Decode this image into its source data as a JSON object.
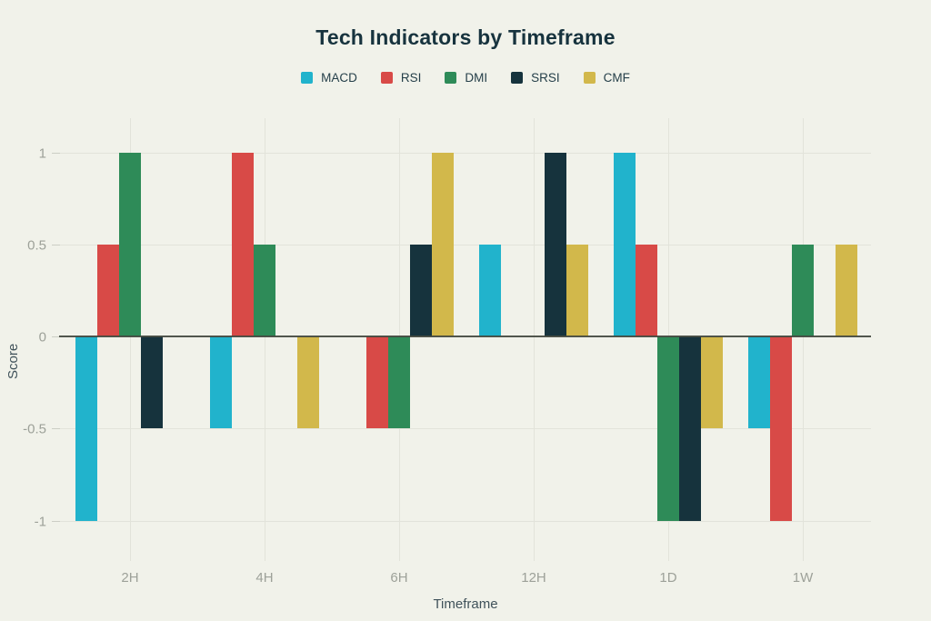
{
  "title": "Tech Indicators by Timeframe",
  "chart_data": {
    "type": "bar",
    "title": "Tech Indicators by Timeframe",
    "xlabel": "Timeframe",
    "ylabel": "Score",
    "categories": [
      "2H",
      "4H",
      "6H",
      "12H",
      "1D",
      "1W"
    ],
    "series": [
      {
        "name": "MACD",
        "color": "#21b3cc",
        "values": [
          -1,
          -0.5,
          0,
          0.5,
          1,
          -0.5
        ]
      },
      {
        "name": "RSI",
        "color": "#d84a47",
        "values": [
          0.5,
          1,
          -0.5,
          0,
          0.5,
          -1
        ]
      },
      {
        "name": "DMI",
        "color": "#2e8b58",
        "values": [
          1,
          0.5,
          -0.5,
          0,
          -1,
          0.5
        ]
      },
      {
        "name": "SRSI",
        "color": "#16333d",
        "values": [
          -0.5,
          0,
          0.5,
          1,
          -1,
          0
        ]
      },
      {
        "name": "CMF",
        "color": "#d2b84b",
        "values": [
          0,
          -0.5,
          1,
          0.5,
          -0.5,
          0.5
        ]
      }
    ],
    "yticks": [
      "1",
      "0.5",
      "0",
      "-0.5",
      "-1"
    ],
    "ylim": [
      -1.2,
      1.2
    ],
    "grid": true,
    "legend_position": "top",
    "colors": {
      "background": "#f1f2ea",
      "title_text": "#17333e",
      "tick_text": "#9da199",
      "axis_title_text": "#40525a",
      "gridline": "#e2e3da",
      "zero_line": "#43493f"
    }
  }
}
